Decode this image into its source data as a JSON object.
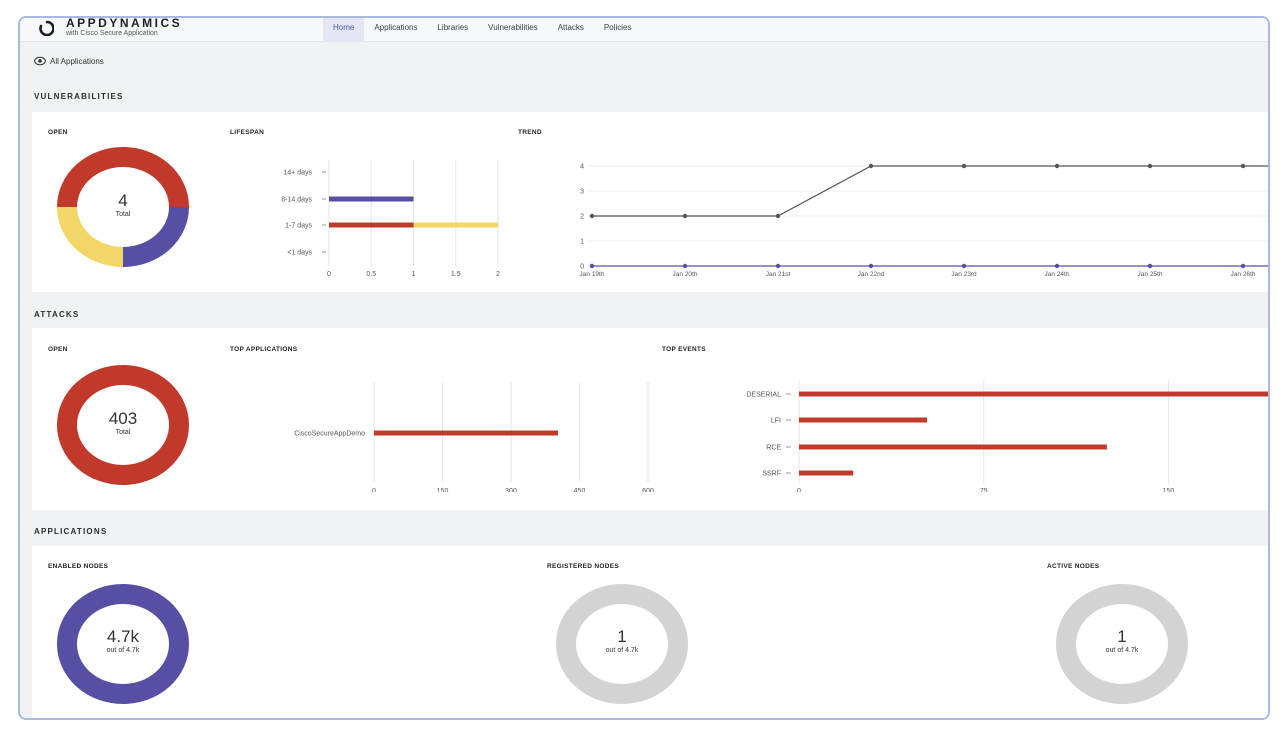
{
  "header": {
    "logo_main": "APPDYNAMICS",
    "logo_sub": "with Cisco Secure Application",
    "nav": [
      "Home",
      "Applications",
      "Libraries",
      "Vulnerabilities",
      "Attacks",
      "Policies"
    ],
    "active_nav": "Home"
  },
  "breadcrumb": {
    "label": "All Applications",
    "icon": "eye-icon"
  },
  "sections": {
    "vulnerabilities": "VULNERABILITIES",
    "attacks": "ATTACKS",
    "applications": "APPLICATIONS"
  },
  "vuln": {
    "open_label": "OPEN",
    "open_value": "4",
    "open_sub": "Total",
    "lifespan_label": "LIFESPAN",
    "trend_label": "TREND"
  },
  "attacks": {
    "open_label": "OPEN",
    "open_value": "403",
    "open_sub": "Total",
    "top_apps_label": "TOP APPLICATIONS",
    "top_events_label": "TOP EVENTS"
  },
  "apps": {
    "enabled": {
      "label": "ENABLED NODES",
      "value": "4.7k",
      "sub": "out of 4.7k"
    },
    "registered": {
      "label": "REGISTERED NODES",
      "value": "1",
      "sub": "out of 4.7k"
    },
    "active": {
      "label": "ACTIVE NODES",
      "value": "1",
      "sub": "out of 4.7k"
    }
  },
  "colors": {
    "red": "#c0392b",
    "purple": "#574fa3",
    "yellow": "#f2d666",
    "gray": "#d3d3d3",
    "line": "#555555"
  },
  "chart_data": [
    {
      "id": "vuln-open",
      "type": "pie",
      "categories": [
        "red",
        "purple",
        "yellow"
      ],
      "values": [
        2,
        1,
        1
      ],
      "title": "OPEN"
    },
    {
      "id": "lifespan",
      "type": "bar",
      "orientation": "horizontal",
      "stacked": true,
      "title": "LIFESPAN",
      "categories": [
        "14+ days",
        "8-14 days",
        "1-7 days",
        "<1 days"
      ],
      "series": [
        {
          "color": "purple",
          "values": [
            0,
            1,
            0,
            0
          ]
        },
        {
          "color": "red",
          "values": [
            0,
            0,
            1,
            0
          ]
        },
        {
          "color": "yellow",
          "values": [
            0,
            0,
            1,
            0
          ]
        }
      ],
      "xlim": [
        0,
        2
      ],
      "xticks": [
        "0",
        "0.5",
        "1",
        "1.5",
        "2"
      ],
      "grid": true
    },
    {
      "id": "trend",
      "type": "line",
      "title": "TREND",
      "x": [
        "Jan 19th",
        "Jan 20th",
        "Jan 21st",
        "Jan 22nd",
        "Jan 23rd",
        "Jan 24th",
        "Jan 25th",
        "Jan 26th"
      ],
      "series": [
        {
          "color": "line",
          "values": [
            2,
            2,
            2,
            4,
            4,
            4,
            4,
            4
          ]
        },
        {
          "color": "purple",
          "values": [
            0,
            0,
            0,
            0,
            0,
            0,
            0,
            0
          ]
        }
      ],
      "ylim": [
        0,
        4
      ],
      "yticks": [
        "0",
        "1",
        "2",
        "3",
        "4"
      ],
      "grid": true
    },
    {
      "id": "attacks-open",
      "type": "pie",
      "categories": [
        "red"
      ],
      "values": [
        403
      ],
      "title": "OPEN"
    },
    {
      "id": "top-apps",
      "type": "bar",
      "orientation": "horizontal",
      "title": "TOP APPLICATIONS",
      "categories": [
        "CiscoSecureAppDemo"
      ],
      "values": [
        403
      ],
      "xlim": [
        0,
        600
      ],
      "xticks": [
        "0",
        "150",
        "300",
        "450",
        "600"
      ],
      "grid": true
    },
    {
      "id": "top-events",
      "type": "bar",
      "orientation": "horizontal",
      "title": "TOP EVENTS",
      "categories": [
        "DESERIAL",
        "LFI",
        "RCE",
        "SSRF"
      ],
      "values": [
        203,
        52,
        125,
        22
      ],
      "xlim": [
        0,
        203
      ],
      "xticks": [
        "0",
        "75",
        "150"
      ],
      "grid": true
    }
  ]
}
